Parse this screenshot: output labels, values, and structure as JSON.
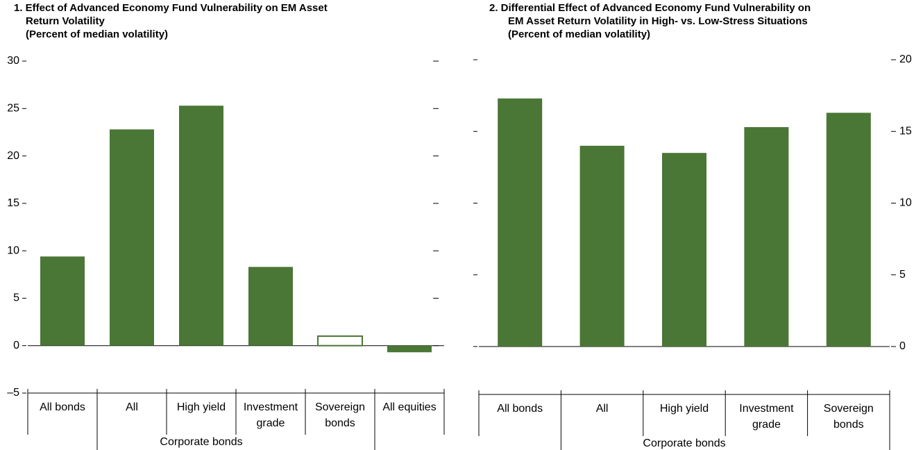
{
  "chart_data": [
    {
      "type": "bar",
      "title": [
        "1. Effect of Advanced Economy Fund Vulnerability on EM Asset",
        "Return Volatility"
      ],
      "subtitle": "(Percent of median volatility)",
      "categories": [
        [
          "All bonds"
        ],
        [
          "All"
        ],
        [
          "High yield"
        ],
        [
          "Investment",
          "grade"
        ],
        [
          "Sovereign",
          "bonds"
        ],
        [
          "All equities"
        ]
      ],
      "groups": [
        {
          "label": "Corporate bonds",
          "start": 1,
          "end": 3
        }
      ],
      "values": [
        9.4,
        22.8,
        25.3,
        8.3,
        1.0,
        -0.7
      ],
      "hollow": [
        false,
        false,
        false,
        false,
        true,
        false
      ],
      "color": "#4a7636",
      "ylim": [
        -5,
        30
      ],
      "yticks": [
        {
          "value": -5,
          "label": "–5"
        },
        0,
        5,
        10,
        15,
        20,
        25,
        30
      ],
      "axis_side": "left"
    },
    {
      "type": "bar",
      "title": [
        "2. Differential Effect of Advanced Economy Fund Vulnerability on",
        "EM Asset Return Volatility in High- vs. Low-Stress Situations"
      ],
      "subtitle": "(Percent of median volatility)",
      "categories": [
        [
          "All bonds"
        ],
        [
          "All"
        ],
        [
          "High yield"
        ],
        [
          "Investment",
          "grade"
        ],
        [
          "Sovereign",
          "bonds"
        ]
      ],
      "groups": [
        {
          "label": "Corporate bonds",
          "start": 1,
          "end": 3
        }
      ],
      "values": [
        17.3,
        14.0,
        13.5,
        15.3,
        16.3
      ],
      "hollow": [
        false,
        false,
        false,
        false,
        false
      ],
      "color": "#4a7636",
      "ylim": [
        0,
        20
      ],
      "yticks": [
        0,
        5,
        10,
        15,
        20
      ],
      "axis_side": "right"
    }
  ]
}
